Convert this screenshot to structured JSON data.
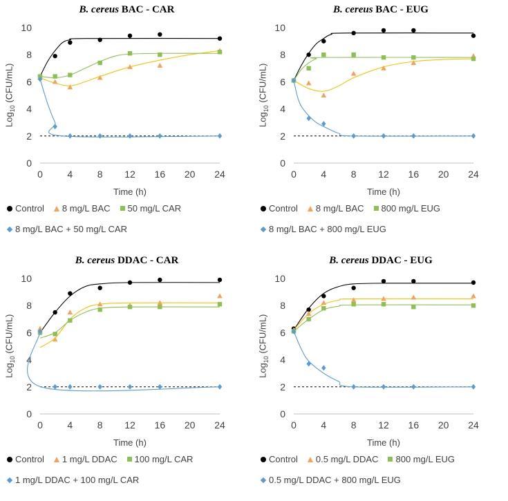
{
  "y_axis": {
    "prefix": "Log",
    "sub": "10",
    "suffix": " (CFU/mL)"
  },
  "x_axis_label": "Time (h)",
  "colors": {
    "control": "#000000",
    "bac": "#F4A15A",
    "agent": "#8CC152",
    "combo": "#5B9BD5",
    "spline_bac": "#FFC000"
  },
  "chart_data": [
    {
      "type": "scatter",
      "title": {
        "italic": "B. cereus",
        "rest": " BAC - CAR"
      },
      "xlabel": "Time (h)",
      "ylabel": "Log10 (CFU/mL)",
      "xlim": [
        0,
        24
      ],
      "ylim": [
        0,
        10
      ],
      "x_ticks": [
        "0",
        "4",
        "8",
        "12",
        "16",
        "20",
        "24"
      ],
      "y_ticks": [
        "0",
        "2",
        "4",
        "6",
        "8",
        "10"
      ],
      "detection_limit": 2,
      "legend_rows": [
        [
          0,
          1,
          2
        ],
        [
          3
        ]
      ],
      "series": [
        {
          "name": "Control",
          "marker": "circle",
          "color": "#000000",
          "x": [
            0,
            2,
            4,
            8,
            12,
            16,
            24
          ],
          "y": [
            6.4,
            7.9,
            8.9,
            9.1,
            9.4,
            9.5,
            9.2
          ],
          "curve": [
            [
              0,
              6.4
            ],
            [
              1,
              7.5
            ],
            [
              2,
              8.3
            ],
            [
              3,
              8.9
            ],
            [
              4,
              9.1
            ],
            [
              6,
              9.2
            ],
            [
              24,
              9.2
            ]
          ]
        },
        {
          "name": "8 mg/L BAC",
          "marker": "triangle",
          "color": "#F4A15A",
          "x": [
            0,
            2,
            4,
            8,
            12,
            16,
            24
          ],
          "y": [
            6.3,
            6.0,
            5.6,
            6.3,
            7.1,
            7.2,
            8.3
          ],
          "curve": [
            [
              0,
              6.3
            ],
            [
              2,
              5.9
            ],
            [
              4,
              5.7
            ],
            [
              6,
              6.0
            ],
            [
              8,
              6.4
            ],
            [
              12,
              7.1
            ],
            [
              16,
              7.6
            ],
            [
              20,
              8.0
            ],
            [
              24,
              8.3
            ]
          ]
        },
        {
          "name": "50 mg/L CAR",
          "marker": "square",
          "color": "#8CC152",
          "x": [
            0,
            2,
            4,
            8,
            12,
            16,
            24
          ],
          "y": [
            6.4,
            6.4,
            6.5,
            7.4,
            8.1,
            8.0,
            8.2
          ],
          "curve": [
            [
              0,
              6.4
            ],
            [
              2,
              6.3
            ],
            [
              4,
              6.5
            ],
            [
              6,
              7.0
            ],
            [
              8,
              7.5
            ],
            [
              10,
              7.9
            ],
            [
              12,
              8.05
            ],
            [
              16,
              8.1
            ],
            [
              24,
              8.1
            ]
          ]
        },
        {
          "name": "8 mg/L BAC + 50 mg/L CAR",
          "marker": "diamond",
          "color": "#5B9BD5",
          "x": [
            0,
            2,
            4,
            8,
            12,
            16,
            24
          ],
          "y": [
            6.2,
            2.7,
            2.0,
            2.0,
            2.0,
            2.0,
            2.0
          ],
          "curve": [
            [
              0,
              6.2
            ],
            [
              1,
              4.4
            ],
            [
              2,
              3.0
            ],
            [
              3,
              2.0
            ],
            [
              24,
              2.0
            ]
          ]
        }
      ]
    },
    {
      "type": "scatter",
      "title": {
        "italic": "B. cereus",
        "rest": " BAC - EUG"
      },
      "xlabel": "Time (h)",
      "ylabel": "Log10 (CFU/mL)",
      "xlim": [
        0,
        24
      ],
      "ylim": [
        0,
        10
      ],
      "x_ticks": [
        "0",
        "4",
        "8",
        "12",
        "16",
        "20",
        "24"
      ],
      "y_ticks": [
        "0",
        "2",
        "4",
        "6",
        "8",
        "10"
      ],
      "detection_limit": 2,
      "legend_rows": [
        [
          0,
          1,
          2
        ],
        [
          3
        ]
      ],
      "series": [
        {
          "name": "Control",
          "marker": "circle",
          "color": "#000000",
          "x": [
            0,
            2,
            4,
            8,
            12,
            16,
            24
          ],
          "y": [
            6.1,
            8.0,
            9.0,
            9.6,
            9.8,
            9.8,
            9.4
          ],
          "curve": [
            [
              0,
              6.1
            ],
            [
              1,
              7.2
            ],
            [
              2,
              8.1
            ],
            [
              3,
              8.8
            ],
            [
              4,
              9.2
            ],
            [
              5,
              9.5
            ],
            [
              7,
              9.6
            ],
            [
              24,
              9.6
            ]
          ]
        },
        {
          "name": "8 mg/L BAC",
          "marker": "triangle",
          "color": "#F4A15A",
          "x": [
            0,
            2,
            4,
            8,
            12,
            16,
            24
          ],
          "y": [
            6.1,
            5.9,
            5.0,
            6.6,
            7.0,
            7.4,
            7.9
          ],
          "curve": [
            [
              0,
              6.1
            ],
            [
              2,
              5.5
            ],
            [
              4,
              5.3
            ],
            [
              6,
              5.7
            ],
            [
              8,
              6.3
            ],
            [
              12,
              7.1
            ],
            [
              16,
              7.5
            ],
            [
              20,
              7.65
            ],
            [
              24,
              7.7
            ]
          ]
        },
        {
          "name": "800 mg/L EUG",
          "marker": "square",
          "color": "#8CC152",
          "x": [
            0,
            2,
            4,
            8,
            12,
            16,
            24
          ],
          "y": [
            6.1,
            7.0,
            8.0,
            8.0,
            7.8,
            7.8,
            7.7
          ],
          "curve": [
            [
              0,
              6.1
            ],
            [
              1,
              6.9
            ],
            [
              2,
              7.4
            ],
            [
              3,
              7.7
            ],
            [
              4,
              7.8
            ],
            [
              24,
              7.8
            ]
          ]
        },
        {
          "name": "8 mg/L BAC + 800 mg/L EUG",
          "marker": "diamond",
          "color": "#5B9BD5",
          "x": [
            0,
            2,
            4,
            8,
            12,
            16,
            24
          ],
          "y": [
            6.1,
            3.3,
            2.9,
            2.0,
            2.0,
            2.0,
            2.0
          ],
          "curve": [
            [
              0,
              6.1
            ],
            [
              0.5,
              4.9
            ],
            [
              1,
              4.2
            ],
            [
              2,
              3.5
            ],
            [
              3,
              3.0
            ],
            [
              4,
              2.7
            ],
            [
              6,
              2.2
            ],
            [
              8,
              2.0
            ],
            [
              24,
              2.0
            ]
          ]
        }
      ]
    },
    {
      "type": "scatter",
      "title": {
        "italic": "B. cereus",
        "rest": " DDAC - CAR"
      },
      "xlabel": "Time (h)",
      "ylabel": "Log10 (CFU/mL)",
      "xlim": [
        0,
        24
      ],
      "ylim": [
        0,
        10
      ],
      "x_ticks": [
        "0",
        "4",
        "8",
        "12",
        "16",
        "20",
        "24"
      ],
      "y_ticks": [
        "0",
        "2",
        "4",
        "6",
        "8",
        "10"
      ],
      "detection_limit": 2,
      "legend_rows": [
        [
          0,
          1,
          2
        ],
        [
          3
        ]
      ],
      "series": [
        {
          "name": "Control",
          "marker": "circle",
          "color": "#000000",
          "x": [
            0,
            2,
            4,
            8,
            12,
            16,
            24
          ],
          "y": [
            6.0,
            7.5,
            8.9,
            9.3,
            9.7,
            9.9,
            9.9
          ],
          "curve": [
            [
              0,
              6.0
            ],
            [
              2,
              7.5
            ],
            [
              4,
              8.7
            ],
            [
              6,
              9.4
            ],
            [
              8,
              9.6
            ],
            [
              12,
              9.7
            ],
            [
              24,
              9.7
            ]
          ]
        },
        {
          "name": "1 mg/L DDAC",
          "marker": "triangle",
          "color": "#F4A15A",
          "x": [
            0,
            2,
            4,
            8,
            12,
            16,
            24
          ],
          "y": [
            6.3,
            5.5,
            7.5,
            8.1,
            8.0,
            8.2,
            8.7
          ],
          "curve": [
            [
              0,
              4.9
            ],
            [
              2,
              5.6
            ],
            [
              4,
              7.0
            ],
            [
              6,
              7.8
            ],
            [
              8,
              8.1
            ],
            [
              12,
              8.2
            ],
            [
              24,
              8.2
            ]
          ]
        },
        {
          "name": "100 mg/L CAR",
          "marker": "square",
          "color": "#8CC152",
          "x": [
            0,
            2,
            4,
            8,
            12,
            16,
            24
          ],
          "y": [
            6.0,
            5.9,
            6.9,
            7.7,
            7.9,
            7.9,
            8.1
          ],
          "curve": [
            [
              0,
              5.6
            ],
            [
              2,
              6.0
            ],
            [
              4,
              6.9
            ],
            [
              6,
              7.5
            ],
            [
              8,
              7.8
            ],
            [
              12,
              7.9
            ],
            [
              24,
              7.9
            ]
          ]
        },
        {
          "name": "1 mg/L DDAC + 100 mg/L CAR",
          "marker": "diamond",
          "color": "#5B9BD5",
          "x": [
            0,
            2,
            4,
            8,
            12,
            16,
            24
          ],
          "y": [
            6.1,
            2.0,
            2.0,
            2.0,
            2.0,
            2.0,
            2.0
          ],
          "curve": [
            [
              0,
              6.1
            ],
            [
              0.1,
              2.0
            ],
            [
              24,
              2.0
            ]
          ]
        }
      ]
    },
    {
      "type": "scatter",
      "title": {
        "italic": "B. cereus",
        "rest": " DDAC - EUG"
      },
      "xlabel": "Time (h)",
      "ylabel": "Log10 (CFU/mL)",
      "xlim": [
        0,
        24
      ],
      "ylim": [
        0,
        10
      ],
      "x_ticks": [
        "0",
        "4",
        "8",
        "12",
        "16",
        "20",
        "24"
      ],
      "y_ticks": [
        "0",
        "2",
        "4",
        "6",
        "8",
        "10"
      ],
      "detection_limit": 2,
      "legend_rows": [
        [
          0,
          1,
          2
        ],
        [
          3
        ]
      ],
      "series": [
        {
          "name": "Control",
          "marker": "circle",
          "color": "#000000",
          "x": [
            0,
            2,
            4,
            8,
            12,
            16,
            24
          ],
          "y": [
            6.3,
            7.7,
            8.7,
            9.3,
            9.8,
            9.8,
            9.7
          ],
          "curve": [
            [
              0,
              6.2
            ],
            [
              2,
              7.8
            ],
            [
              4,
              8.9
            ],
            [
              6,
              9.4
            ],
            [
              8,
              9.6
            ],
            [
              12,
              9.65
            ],
            [
              24,
              9.65
            ]
          ]
        },
        {
          "name": "0.5 mg/L DDAC",
          "marker": "triangle",
          "color": "#F4A15A",
          "x": [
            0,
            2,
            4,
            8,
            12,
            16,
            24
          ],
          "y": [
            6.2,
            7.4,
            8.2,
            8.4,
            8.5,
            8.6,
            8.7
          ],
          "curve": [
            [
              0,
              6.2
            ],
            [
              2,
              7.4
            ],
            [
              4,
              8.1
            ],
            [
              6,
              8.4
            ],
            [
              8,
              8.5
            ],
            [
              24,
              8.5
            ]
          ]
        },
        {
          "name": "800 mg/L EUG",
          "marker": "square",
          "color": "#8CC152",
          "x": [
            0,
            2,
            4,
            8,
            12,
            16,
            24
          ],
          "y": [
            6.1,
            7.0,
            7.8,
            8.1,
            8.1,
            7.9,
            8.0
          ],
          "curve": [
            [
              0,
              6.1
            ],
            [
              2,
              7.0
            ],
            [
              4,
              7.7
            ],
            [
              6,
              7.95
            ],
            [
              8,
              8.05
            ],
            [
              24,
              8.05
            ]
          ]
        },
        {
          "name": "0.5 mg/L DDAC + 800 mg/L EUG",
          "marker": "diamond",
          "color": "#5B9BD5",
          "x": [
            0,
            2,
            4,
            8,
            12,
            16,
            24
          ],
          "y": [
            6.1,
            3.7,
            3.4,
            2.0,
            2.0,
            2.0,
            2.0
          ],
          "curve": [
            [
              0,
              6.1
            ],
            [
              1,
              4.8
            ],
            [
              2,
              3.9
            ],
            [
              4,
              3.0
            ],
            [
              6,
              2.4
            ],
            [
              8,
              2.0
            ],
            [
              24,
              2.0
            ]
          ]
        }
      ]
    }
  ]
}
